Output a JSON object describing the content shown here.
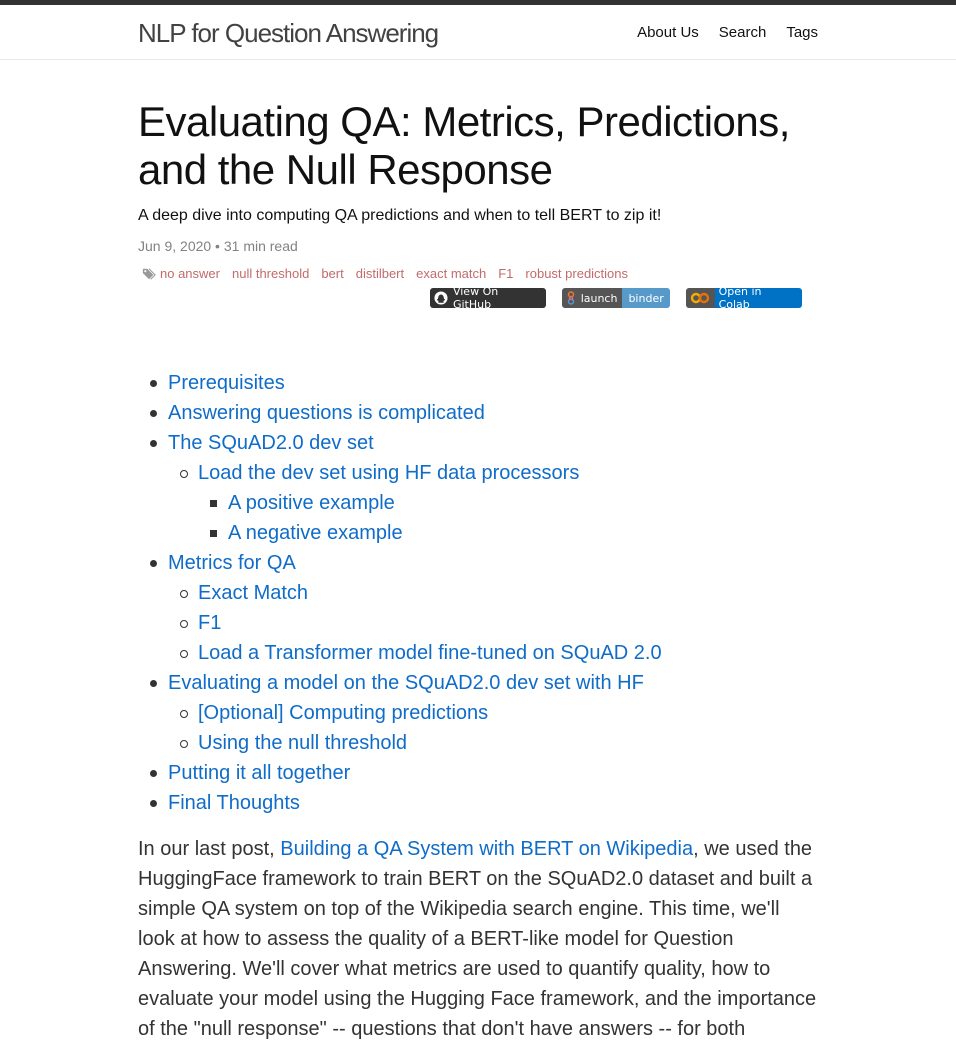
{
  "site": {
    "title": "NLP for Question Answering",
    "nav": [
      "About Us",
      "Search",
      "Tags"
    ]
  },
  "post": {
    "title": "Evaluating QA: Metrics, Predictions, and the Null Response",
    "description": "A deep dive into computing QA predictions and when to tell BERT to zip it!",
    "meta": "Jun 9, 2020 • 31 min read",
    "tags": [
      "no answer",
      "null threshold",
      "bert",
      "distilbert",
      "exact match",
      "F1",
      "robust predictions"
    ],
    "badges": {
      "github": "View On GitHub",
      "binder_left": "launch",
      "binder_right": "binder",
      "colab": "Open in Colab"
    }
  },
  "toc": [
    {
      "level": 1,
      "label": "Prerequisites"
    },
    {
      "level": 1,
      "label": "Answering questions is complicated"
    },
    {
      "level": 1,
      "label": "The SQuAD2.0 dev set"
    },
    {
      "level": 2,
      "label": "Load the dev set using HF data processors"
    },
    {
      "level": 3,
      "label": "A positive example"
    },
    {
      "level": 3,
      "label": "A negative example"
    },
    {
      "level": 1,
      "label": "Metrics for QA"
    },
    {
      "level": 2,
      "label": "Exact Match"
    },
    {
      "level": 2,
      "label": "F1"
    },
    {
      "level": 2,
      "label": "Load a Transformer model fine-tuned on SQuAD 2.0"
    },
    {
      "level": 1,
      "label": "Evaluating a model on the SQuAD2.0 dev set with HF"
    },
    {
      "level": 2,
      "label": "[Optional] Computing predictions"
    },
    {
      "level": 2,
      "label": "Using the null threshold"
    },
    {
      "level": 1,
      "label": "Putting it all together"
    },
    {
      "level": 1,
      "label": "Final Thoughts"
    }
  ],
  "intro": {
    "before": "In our last post, ",
    "link": "Building a QA System with BERT on Wikipedia",
    "after": ", we used the HuggingFace framework to train BERT on the SQuAD2.0 dataset and built a simple QA system on top of the Wikipedia search engine. This time, we'll look at how to assess the quality of a BERT-like model for Question Answering. We'll cover what metrics are used to quantify quality, how to evaluate your model using the Hugging Face framework, and the importance of the \"null response\" -- questions that don't have answers -- for both"
  }
}
